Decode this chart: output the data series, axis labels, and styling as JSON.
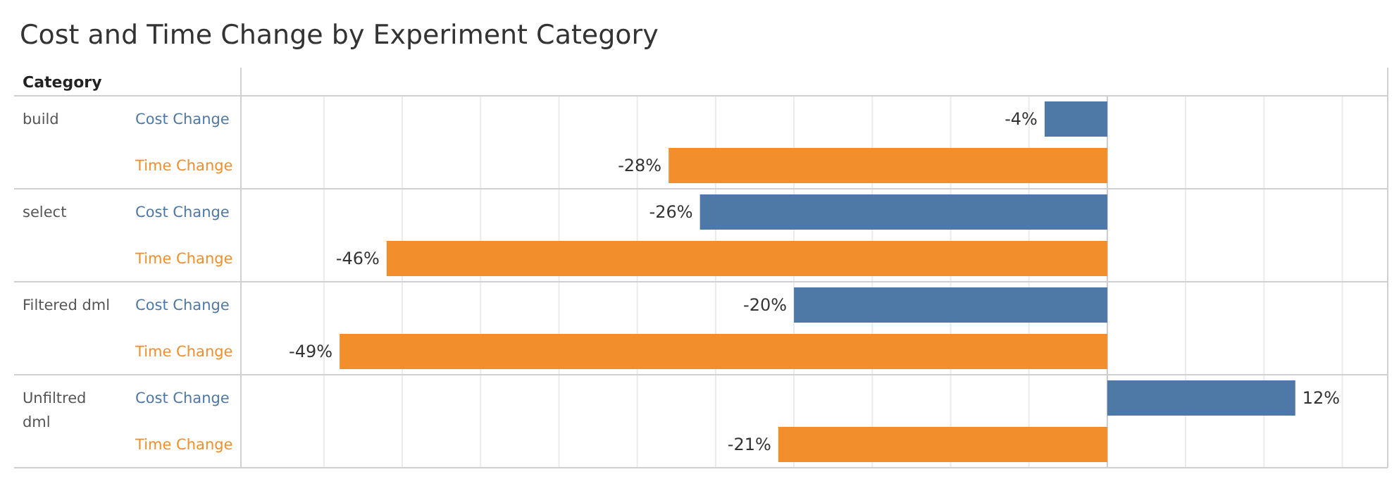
{
  "chart_data": {
    "type": "bar",
    "orientation": "horizontal",
    "title": "Cost and Time Change by Experiment Category",
    "ylabel": "Category",
    "categories": [
      "build",
      "select",
      "Filtered dml",
      "Unfiltred dml"
    ],
    "series": [
      {
        "name": "Cost Change",
        "color": "#4e79a7",
        "values": [
          -4,
          -26,
          -20,
          12
        ],
        "value_labels": [
          "-4%",
          "-26%",
          "-20%",
          "12%"
        ]
      },
      {
        "name": "Time Change",
        "color": "#f28e2b",
        "values": [
          -28,
          -46,
          -49,
          -21
        ],
        "value_labels": [
          "-28%",
          "-46%",
          "-49%",
          "-21%"
        ]
      }
    ],
    "xlim": [
      -55.3,
      17.9
    ],
    "xticks": [
      {
        "value": -50,
        "label": null
      },
      {
        "value": -45,
        "label": null
      },
      {
        "value": -40,
        "label": null
      },
      {
        "value": -35,
        "label": null
      },
      {
        "value": -30,
        "label": null
      },
      {
        "value": -25,
        "label": null
      },
      {
        "value": -20,
        "label": null
      },
      {
        "value": -15,
        "label": null
      },
      {
        "value": -10,
        "label": null
      },
      {
        "value": -5,
        "label": null
      },
      {
        "value": 0,
        "label": null
      },
      {
        "value": 5,
        "label": null
      },
      {
        "value": 10,
        "label": null
      },
      {
        "value": 15,
        "label": null
      }
    ],
    "grid": "x"
  }
}
